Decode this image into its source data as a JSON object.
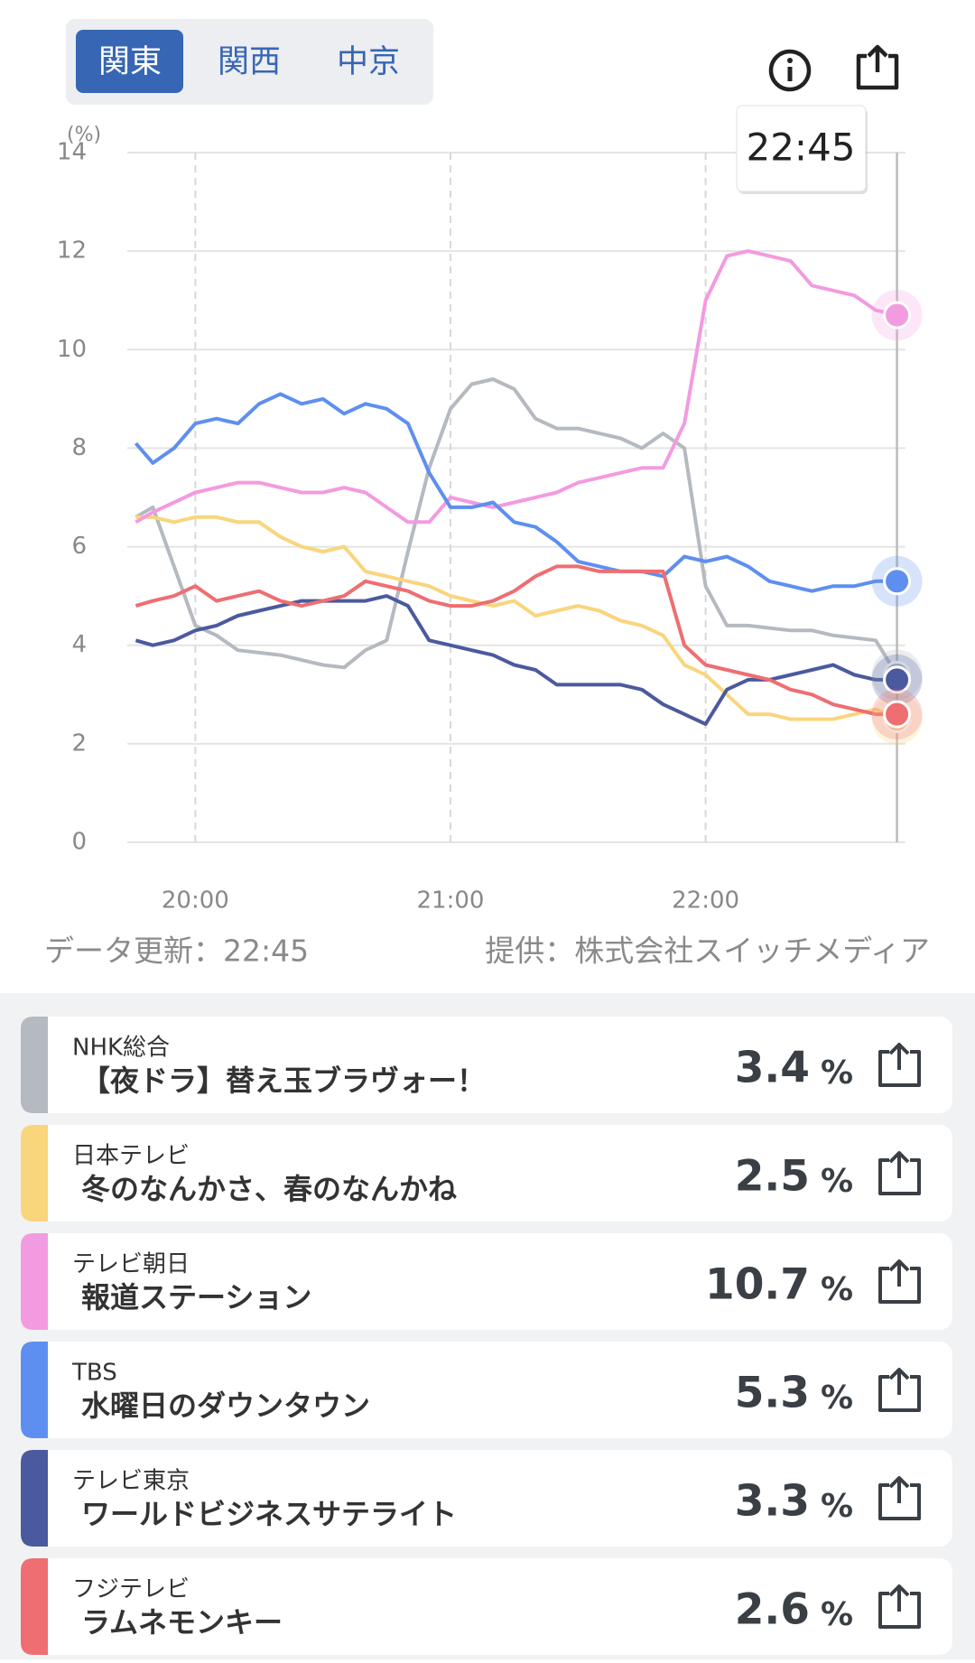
{
  "tabs": [
    "関東",
    "関西",
    "中京"
  ],
  "chart_data": {
    "type": "line",
    "y_label": "(%)",
    "x": [
      "19:46",
      "19:50",
      "19:55",
      "20:00",
      "20:05",
      "20:10",
      "20:15",
      "20:20",
      "20:25",
      "20:30",
      "20:35",
      "20:40",
      "20:45",
      "20:50",
      "20:55",
      "21:00",
      "21:05",
      "21:10",
      "21:15",
      "21:20",
      "21:25",
      "21:30",
      "21:35",
      "21:40",
      "21:45",
      "21:50",
      "21:55",
      "22:00",
      "22:05",
      "22:10",
      "22:15",
      "22:20",
      "22:25",
      "22:30",
      "22:35",
      "22:40",
      "22:45"
    ],
    "xlim": [
      "19:44",
      "22:47"
    ],
    "xticks": [
      "20:00",
      "21:00",
      "22:00"
    ],
    "ylim": [
      0,
      14
    ],
    "yticks": [
      0,
      2,
      4,
      6,
      8,
      10,
      12,
      14
    ],
    "grid": true,
    "value_unit": "%",
    "series": [
      {
        "name": "NHK総合",
        "program": "【夜ドラ】替え玉ブラヴォー！",
        "rating": 3.4,
        "color": "#b5b9c0",
        "values": [
          6.6,
          6.8,
          5.6,
          4.4,
          4.2,
          3.9,
          3.85,
          3.8,
          3.7,
          3.6,
          3.55,
          3.9,
          4.1,
          5.9,
          7.6,
          8.8,
          9.3,
          9.4,
          9.2,
          8.6,
          8.4,
          8.4,
          8.3,
          8.2,
          8.0,
          8.3,
          8.0,
          5.2,
          4.4,
          4.4,
          4.35,
          4.3,
          4.3,
          4.2,
          4.15,
          4.1,
          3.4
        ]
      },
      {
        "name": "日本テレビ",
        "program": "冬のなんかさ、春のなんかね",
        "rating": 2.5,
        "color": "#f9d57c",
        "values": [
          6.6,
          6.6,
          6.5,
          6.6,
          6.6,
          6.5,
          6.5,
          6.2,
          6.0,
          5.9,
          6.0,
          5.5,
          5.4,
          5.3,
          5.2,
          5.0,
          4.9,
          4.8,
          4.9,
          4.6,
          4.7,
          4.8,
          4.7,
          4.5,
          4.4,
          4.2,
          3.6,
          3.4,
          3.0,
          2.6,
          2.6,
          2.5,
          2.5,
          2.5,
          2.6,
          2.7,
          2.5
        ]
      },
      {
        "name": "テレビ朝日",
        "program": "報道ステーション",
        "rating": 10.7,
        "color": "#f29be0",
        "values": [
          6.5,
          6.7,
          6.9,
          7.1,
          7.2,
          7.3,
          7.3,
          7.2,
          7.1,
          7.1,
          7.2,
          7.1,
          6.8,
          6.5,
          6.5,
          7.0,
          6.9,
          6.8,
          6.9,
          7.0,
          7.1,
          7.3,
          7.4,
          7.5,
          7.6,
          7.6,
          8.5,
          11.0,
          11.9,
          12.0,
          11.9,
          11.8,
          11.3,
          11.2,
          11.1,
          10.8,
          10.7
        ]
      },
      {
        "name": "TBS",
        "program": "水曜日のダウンタウン",
        "rating": 5.3,
        "color": "#5e8ff0",
        "values": [
          8.1,
          7.7,
          8.0,
          8.5,
          8.6,
          8.5,
          8.9,
          9.1,
          8.9,
          9.0,
          8.7,
          8.9,
          8.8,
          8.5,
          7.5,
          6.8,
          6.8,
          6.9,
          6.5,
          6.4,
          6.1,
          5.7,
          5.6,
          5.5,
          5.5,
          5.4,
          5.8,
          5.7,
          5.8,
          5.6,
          5.3,
          5.2,
          5.1,
          5.2,
          5.2,
          5.3,
          5.3
        ]
      },
      {
        "name": "テレビ東京",
        "program": "ワールドビジネスサテライト",
        "rating": 3.3,
        "color": "#4b5a9e",
        "values": [
          4.1,
          4.0,
          4.1,
          4.3,
          4.4,
          4.6,
          4.7,
          4.8,
          4.9,
          4.9,
          4.9,
          4.9,
          5.0,
          4.8,
          4.1,
          4.0,
          3.9,
          3.8,
          3.6,
          3.5,
          3.2,
          3.2,
          3.2,
          3.2,
          3.1,
          2.8,
          2.6,
          2.4,
          3.1,
          3.3,
          3.3,
          3.4,
          3.5,
          3.6,
          3.4,
          3.3,
          3.3
        ]
      },
      {
        "name": "フジテレビ",
        "program": "ラムネモンキー",
        "rating": 2.6,
        "color": "#ee6e72",
        "values": [
          4.8,
          4.9,
          5.0,
          5.2,
          4.9,
          5.0,
          5.1,
          4.9,
          4.8,
          4.9,
          5.0,
          5.3,
          5.2,
          5.1,
          4.9,
          4.8,
          4.8,
          4.9,
          5.1,
          5.4,
          5.6,
          5.6,
          5.5,
          5.5,
          5.5,
          5.5,
          4.0,
          3.6,
          3.5,
          3.4,
          3.3,
          3.1,
          3.0,
          2.8,
          2.7,
          2.6,
          2.6
        ]
      }
    ]
  },
  "footer": {
    "updated": "データ更新：22:45",
    "source": "提供：株式会社スイッチメディア"
  }
}
